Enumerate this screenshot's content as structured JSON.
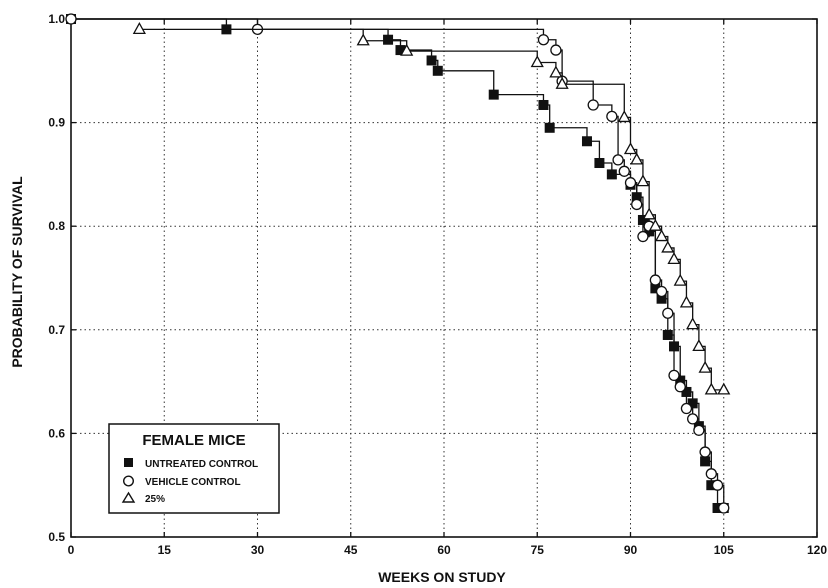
{
  "chart_data": {
    "type": "line",
    "title": "",
    "xlabel": "WEEKS ON STUDY",
    "ylabel": "PROBABILITY OF SURVIVAL",
    "xlim": [
      0,
      120
    ],
    "ylim": [
      0.5,
      1.0
    ],
    "x_ticks": [
      "0",
      "15",
      "30",
      "45",
      "60",
      "75",
      "90",
      "105",
      "120"
    ],
    "y_ticks": [
      "0.5",
      "0.6",
      "0.7",
      "0.8",
      "0.9",
      "1.0"
    ],
    "grid": true,
    "step": true,
    "legend": {
      "title": "FEMALE MICE",
      "position": "bottom-left",
      "entries": [
        "UNTREATED CONTROL",
        "VEHICLE CONTROL",
        "25%"
      ]
    },
    "series": [
      {
        "name": "UNTREATED CONTROL",
        "marker": "filled-square",
        "points": [
          [
            0,
            1.0
          ],
          [
            25,
            0.99
          ],
          [
            51,
            0.98
          ],
          [
            53,
            0.97
          ],
          [
            58,
            0.96
          ],
          [
            59,
            0.95
          ],
          [
            68,
            0.927
          ],
          [
            76,
            0.917
          ],
          [
            77,
            0.895
          ],
          [
            83,
            0.882
          ],
          [
            85,
            0.861
          ],
          [
            87,
            0.85
          ],
          [
            90,
            0.84
          ],
          [
            91,
            0.828
          ],
          [
            92,
            0.806
          ],
          [
            93,
            0.795
          ],
          [
            94,
            0.74
          ],
          [
            95,
            0.73
          ],
          [
            96,
            0.695
          ],
          [
            97,
            0.684
          ],
          [
            98,
            0.651
          ],
          [
            99,
            0.64
          ],
          [
            100,
            0.629
          ],
          [
            101,
            0.607
          ],
          [
            102,
            0.573
          ],
          [
            103,
            0.55
          ],
          [
            104,
            0.528
          ],
          [
            105,
            0.528
          ]
        ]
      },
      {
        "name": "VEHICLE CONTROL",
        "marker": "open-circle",
        "points": [
          [
            0,
            1.0
          ],
          [
            30,
            0.99
          ],
          [
            76,
            0.98
          ],
          [
            78,
            0.97
          ],
          [
            79,
            0.94
          ],
          [
            84,
            0.917
          ],
          [
            87,
            0.906
          ],
          [
            88,
            0.864
          ],
          [
            89,
            0.853
          ],
          [
            90,
            0.842
          ],
          [
            91,
            0.821
          ],
          [
            92,
            0.79
          ],
          [
            93,
            0.8
          ],
          [
            94,
            0.748
          ],
          [
            95,
            0.737
          ],
          [
            96,
            0.716
          ],
          [
            97,
            0.656
          ],
          [
            98,
            0.645
          ],
          [
            99,
            0.624
          ],
          [
            100,
            0.614
          ],
          [
            101,
            0.603
          ],
          [
            102,
            0.582
          ],
          [
            103,
            0.561
          ],
          [
            104,
            0.55
          ],
          [
            105,
            0.528
          ]
        ]
      },
      {
        "name": "25%",
        "marker": "open-triangle",
        "points": [
          [
            11,
            0.99
          ],
          [
            47,
            0.979
          ],
          [
            54,
            0.969
          ],
          [
            75,
            0.958
          ],
          [
            78,
            0.948
          ],
          [
            79,
            0.937
          ],
          [
            89,
            0.905
          ],
          [
            90,
            0.874
          ],
          [
            91,
            0.864
          ],
          [
            92,
            0.843
          ],
          [
            93,
            0.811
          ],
          [
            94,
            0.8
          ],
          [
            95,
            0.79
          ],
          [
            96,
            0.779
          ],
          [
            97,
            0.768
          ],
          [
            98,
            0.747
          ],
          [
            99,
            0.726
          ],
          [
            100,
            0.705
          ],
          [
            101,
            0.684
          ],
          [
            102,
            0.663
          ],
          [
            103,
            0.642
          ],
          [
            105,
            0.642
          ]
        ]
      }
    ]
  }
}
